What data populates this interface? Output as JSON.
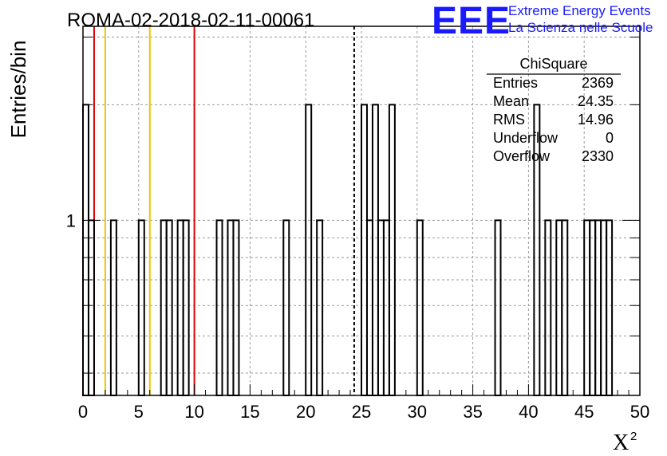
{
  "chart_data": {
    "type": "histogram",
    "title": "ROMA-02-2018-02-11-00061",
    "xlabel": "X",
    "xlabel_superscript": "2",
    "ylabel": "Entries/bin",
    "xlim": [
      0,
      50
    ],
    "ylim_log": [
      0.35,
      3.2
    ],
    "log_y": true,
    "grid": true,
    "x_ticks": [
      0,
      5,
      10,
      15,
      20,
      25,
      30,
      35,
      40,
      45,
      50
    ],
    "y_tick_labels": [
      {
        "value": 1,
        "label": "1"
      }
    ],
    "bin_width": 0.5,
    "bins": [
      {
        "x": 0.0,
        "count": 2
      },
      {
        "x": 0.5,
        "count": 1
      },
      {
        "x": 2.5,
        "count": 1
      },
      {
        "x": 5.0,
        "count": 1
      },
      {
        "x": 7.0,
        "count": 1
      },
      {
        "x": 7.5,
        "count": 1
      },
      {
        "x": 8.5,
        "count": 1
      },
      {
        "x": 9.0,
        "count": 1
      },
      {
        "x": 12.0,
        "count": 1
      },
      {
        "x": 13.0,
        "count": 1
      },
      {
        "x": 13.5,
        "count": 1
      },
      {
        "x": 18.0,
        "count": 1
      },
      {
        "x": 20.0,
        "count": 2
      },
      {
        "x": 21.0,
        "count": 1
      },
      {
        "x": 25.0,
        "count": 2
      },
      {
        "x": 25.5,
        "count": 1
      },
      {
        "x": 26.0,
        "count": 2
      },
      {
        "x": 26.5,
        "count": 1
      },
      {
        "x": 27.0,
        "count": 1
      },
      {
        "x": 27.5,
        "count": 2
      },
      {
        "x": 30.0,
        "count": 1
      },
      {
        "x": 37.0,
        "count": 1
      },
      {
        "x": 40.5,
        "count": 2
      },
      {
        "x": 41.5,
        "count": 1
      },
      {
        "x": 42.5,
        "count": 1
      },
      {
        "x": 43.0,
        "count": 1
      },
      {
        "x": 45.0,
        "count": 1
      },
      {
        "x": 45.5,
        "count": 1
      },
      {
        "x": 46.0,
        "count": 1
      },
      {
        "x": 46.5,
        "count": 1
      },
      {
        "x": 47.0,
        "count": 1
      }
    ],
    "reference_lines": [
      {
        "x": 1.0,
        "color": "#dd0000",
        "style": "solid"
      },
      {
        "x": 2.0,
        "color": "#f2c400",
        "style": "solid"
      },
      {
        "x": 6.0,
        "color": "#f2c400",
        "style": "solid"
      },
      {
        "x": 10.0,
        "color": "#dd0000",
        "style": "solid"
      },
      {
        "x": 24.35,
        "color": "#000000",
        "style": "dashed"
      }
    ],
    "stats_box": {
      "title": "ChiSquare",
      "rows": [
        {
          "label": "Entries",
          "value": "2369"
        },
        {
          "label": "Mean",
          "value": "24.35"
        },
        {
          "label": "RMS",
          "value": "14.96"
        },
        {
          "label": "Underflow",
          "value": "0"
        },
        {
          "label": "Overflow",
          "value": "2330"
        }
      ]
    }
  },
  "logo": {
    "big": "EEE",
    "line1": "Extreme Energy Events",
    "line2": "La Scienza nelle Scuole",
    "color": "#1a1aff"
  }
}
